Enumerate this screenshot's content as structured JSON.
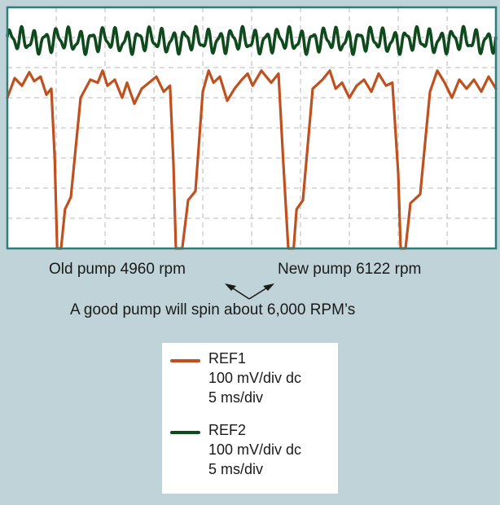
{
  "colors": {
    "background": "#bfd3d8",
    "screen": "#ffffff",
    "screen_border": "#2e7d7a",
    "grid": "#b8b8b8",
    "ref1": "#c0501e",
    "ref2": "#0f4a1c"
  },
  "annotations": {
    "old_pump": "Old pump 4960 rpm",
    "new_pump": "New pump 6122 rpm",
    "good_pump": "A good pump will spin about 6,000 RPM’s"
  },
  "legend": {
    "ref1": {
      "name": "REF1",
      "scale": "100 mV/div dc",
      "time": "5 ms/div",
      "color": "#c0501e"
    },
    "ref2": {
      "name": "REF2",
      "scale": "100 mV/div dc",
      "time": "5 ms/div",
      "color": "#0f4a1c"
    }
  },
  "chart_data": {
    "type": "line",
    "title": "",
    "xlabel": "",
    "ylabel": "",
    "grid": true,
    "divisions": {
      "x": 10,
      "y": 8
    },
    "xlim": [
      0,
      10
    ],
    "ylim": [
      0,
      8
    ],
    "series": [
      {
        "name": "REF1",
        "color": "#c0501e",
        "x": [
          0,
          0.15,
          0.3,
          0.45,
          0.55,
          0.68,
          0.8,
          0.9,
          0.97,
          1.02,
          1.06,
          1.1,
          1.18,
          1.3,
          1.5,
          1.7,
          1.85,
          1.95,
          2.05,
          2.2,
          2.35,
          2.45,
          2.6,
          2.75,
          2.9,
          3.05,
          3.2,
          3.33,
          3.4,
          3.45,
          3.5,
          3.58,
          3.7,
          3.85,
          4.0,
          4.12,
          4.22,
          4.35,
          4.5,
          4.65,
          4.8,
          4.92,
          5.02,
          5.2,
          5.4,
          5.55,
          5.65,
          5.75,
          5.8,
          5.86,
          5.92,
          6.05,
          6.25,
          6.45,
          6.6,
          6.72,
          6.85,
          7.0,
          7.15,
          7.3,
          7.45,
          7.6,
          7.75,
          7.88,
          8.0,
          8.05,
          8.1,
          8.15,
          8.25,
          8.45,
          8.65,
          8.8,
          8.95,
          9.1,
          9.25,
          9.4,
          9.55,
          9.7,
          9.85,
          10.0
        ],
        "values": [
          5.0,
          5.65,
          5.4,
          5.85,
          5.55,
          5.7,
          5.1,
          5.3,
          3.0,
          0.0,
          0.0,
          0.0,
          1.3,
          1.7,
          5.0,
          5.6,
          5.5,
          5.9,
          5.4,
          5.6,
          5.0,
          5.5,
          4.8,
          5.3,
          5.5,
          5.7,
          5.2,
          5.4,
          2.8,
          0.0,
          0.0,
          0.0,
          1.6,
          1.9,
          5.2,
          5.9,
          5.5,
          5.7,
          4.9,
          5.3,
          5.6,
          5.8,
          5.4,
          5.9,
          5.5,
          5.8,
          2.8,
          0.0,
          0.0,
          0.0,
          1.3,
          1.6,
          5.3,
          5.6,
          5.9,
          5.3,
          5.5,
          5.0,
          5.4,
          5.6,
          5.2,
          5.8,
          5.4,
          5.5,
          2.5,
          0.0,
          0.0,
          0.0,
          1.5,
          1.8,
          5.2,
          5.9,
          5.5,
          5.0,
          5.6,
          5.3,
          5.6,
          5.2,
          5.7,
          5.3
        ]
      },
      {
        "name": "REF2",
        "color": "#0f4a1c",
        "baseline": 6.9,
        "ripple_amplitude": 0.3
      }
    ]
  }
}
